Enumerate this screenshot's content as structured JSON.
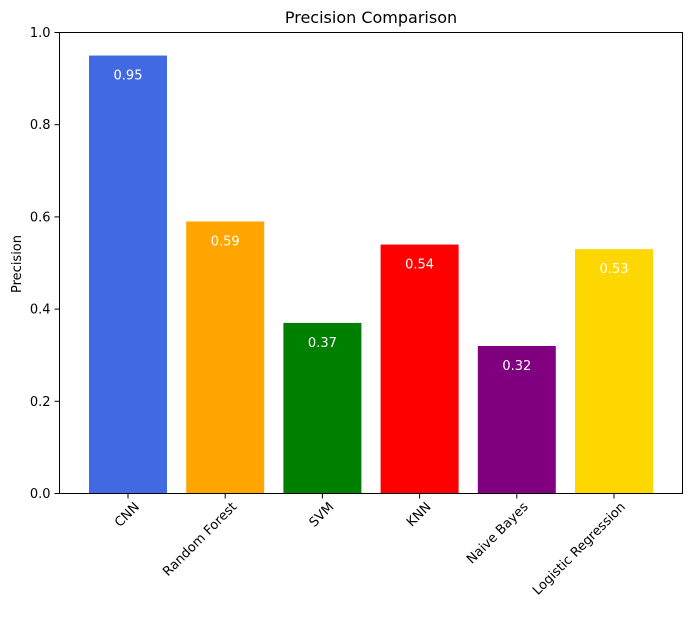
{
  "chart_data": {
    "type": "bar",
    "title": "Precision Comparison",
    "xlabel": "",
    "ylabel": "Precision",
    "categories": [
      "CNN",
      "Random Forest",
      "SVM",
      "KNN",
      "Naive Bayes",
      "Logistic Regression"
    ],
    "values": [
      0.95,
      0.59,
      0.37,
      0.54,
      0.32,
      0.53
    ],
    "data_labels": [
      "0.95",
      "0.59",
      "0.37",
      "0.54",
      "0.32",
      "0.53"
    ],
    "colors": [
      "#4169e1",
      "#ffa500",
      "#008000",
      "#ff0000",
      "#800080",
      "#ffd700"
    ],
    "ylim": [
      0,
      1.0
    ],
    "yticks": [
      0.0,
      0.2,
      0.4,
      0.6,
      0.8,
      1.0
    ],
    "ytick_labels": [
      "0.0",
      "0.2",
      "0.4",
      "0.6",
      "0.8",
      "1.0"
    ],
    "grid": false,
    "legend": "none"
  }
}
